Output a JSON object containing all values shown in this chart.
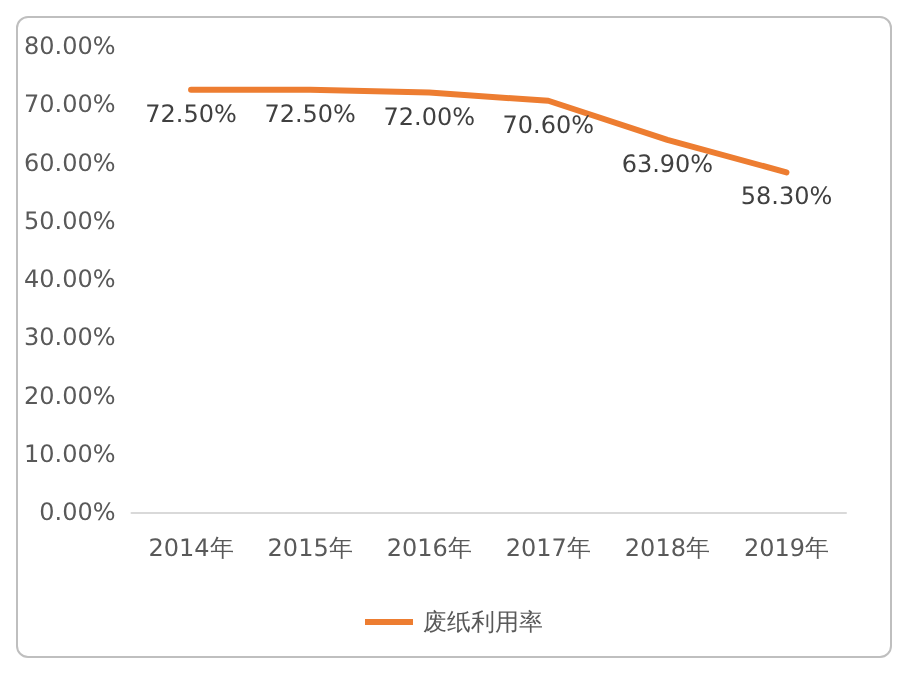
{
  "chart_data": {
    "type": "line",
    "categories": [
      "2014年",
      "2015年",
      "2016年",
      "2017年",
      "2018年",
      "2019年"
    ],
    "series": [
      {
        "name": "废纸利用率",
        "color": "#ed7d31",
        "values": [
          72.5,
          72.5,
          72.0,
          70.6,
          63.9,
          58.3
        ],
        "value_labels": [
          "72.50%",
          "72.50%",
          "72.00%",
          "70.60%",
          "63.90%",
          "58.30%"
        ]
      }
    ],
    "ylim": [
      0,
      80
    ],
    "yticks": [
      {
        "value": 0,
        "label": "0.00%"
      },
      {
        "value": 10,
        "label": "10.00%"
      },
      {
        "value": 20,
        "label": "20.00%"
      },
      {
        "value": 30,
        "label": "30.00%"
      },
      {
        "value": 40,
        "label": "40.00%"
      },
      {
        "value": 50,
        "label": "50.00%"
      },
      {
        "value": 60,
        "label": "60.00%"
      },
      {
        "value": 70,
        "label": "70.00%"
      },
      {
        "value": 80,
        "label": "80.00%"
      }
    ],
    "grid": false,
    "legend": "bottom",
    "marker": "none",
    "line_style": "solid"
  }
}
